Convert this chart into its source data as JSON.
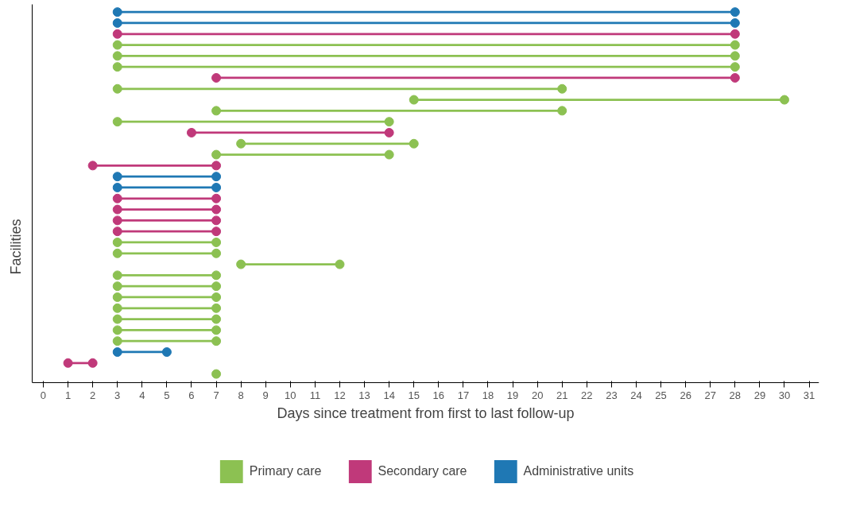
{
  "chart_data": {
    "type": "bar",
    "orientation": "horizontal",
    "xlabel": "Days since treatment from first to last follow-up",
    "ylabel": "Facilities",
    "categories": [
      null,
      null,
      null,
      null,
      null,
      null,
      null,
      null,
      null,
      null,
      null,
      null,
      null,
      null,
      null,
      null,
      null,
      null,
      null,
      null,
      null,
      null,
      null,
      null,
      null,
      null,
      null,
      null,
      null,
      null,
      null,
      null,
      null,
      null
    ],
    "series": [
      {
        "name": "Primary care",
        "color": "#8cc152",
        "base": [
          null,
          null,
          null,
          3,
          3,
          3,
          null,
          3,
          15,
          7,
          3,
          null,
          8,
          7,
          null,
          null,
          null,
          null,
          null,
          null,
          null,
          3,
          3,
          8,
          3,
          3,
          3,
          3,
          3,
          3,
          3,
          null,
          null,
          null
        ],
        "values": [
          null,
          null,
          null,
          25,
          25,
          25,
          null,
          18,
          15,
          14,
          11,
          null,
          7,
          7,
          null,
          null,
          null,
          null,
          null,
          null,
          null,
          4,
          4,
          4,
          4,
          4,
          4,
          4,
          4,
          4,
          4,
          null,
          null,
          null
        ]
      },
      {
        "name": "Secondary care",
        "color": "#c0397a",
        "base": [
          null,
          null,
          3,
          null,
          null,
          null,
          7,
          null,
          null,
          null,
          null,
          6,
          null,
          null,
          2,
          null,
          null,
          3,
          3,
          3,
          3,
          null,
          null,
          null,
          null,
          null,
          null,
          null,
          null,
          null,
          null,
          null,
          1,
          null
        ],
        "values": [
          null,
          null,
          25,
          null,
          null,
          null,
          21,
          null,
          null,
          null,
          null,
          8,
          null,
          null,
          5,
          null,
          null,
          4,
          4,
          4,
          4,
          null,
          null,
          null,
          null,
          null,
          null,
          null,
          null,
          null,
          null,
          null,
          1,
          null
        ]
      },
      {
        "name": "Administrative units",
        "color": "#1f78b4",
        "base": [
          3,
          3,
          null,
          null,
          null,
          null,
          null,
          null,
          null,
          null,
          null,
          null,
          null,
          null,
          null,
          3,
          3,
          null,
          null,
          null,
          null,
          null,
          null,
          null,
          null,
          null,
          null,
          null,
          null,
          null,
          null,
          3,
          null,
          null
        ],
        "values": [
          25,
          25,
          null,
          null,
          null,
          null,
          null,
          null,
          null,
          null,
          null,
          null,
          null,
          null,
          null,
          4,
          4,
          null,
          null,
          null,
          null,
          null,
          null,
          null,
          null,
          null,
          null,
          null,
          null,
          null,
          null,
          2,
          null,
          null
        ]
      },
      {
        "type": "scatter",
        "color": "#8cc152",
        "values": [
          null,
          null,
          null,
          3,
          3,
          3,
          null,
          3,
          15,
          7,
          3,
          null,
          8,
          7,
          null,
          null,
          null,
          null,
          null,
          null,
          null,
          3,
          3,
          8,
          3,
          3,
          3,
          3,
          3,
          3,
          3,
          null,
          null,
          7
        ]
      },
      {
        "type": "scatter",
        "color": "#8cc152",
        "values": [
          null,
          null,
          null,
          28,
          28,
          28,
          null,
          21,
          30,
          21,
          14,
          null,
          15,
          14,
          null,
          null,
          null,
          null,
          null,
          null,
          null,
          7,
          7,
          12,
          7,
          7,
          7,
          7,
          7,
          7,
          7,
          null,
          null,
          null
        ]
      },
      {
        "type": "scatter",
        "color": "#c0397a",
        "values": [
          null,
          null,
          3,
          null,
          null,
          null,
          7,
          null,
          null,
          null,
          null,
          6,
          null,
          null,
          2,
          null,
          null,
          3,
          3,
          3,
          3,
          null,
          null,
          null,
          null,
          null,
          null,
          null,
          null,
          null,
          null,
          null,
          1,
          null
        ]
      },
      {
        "type": "scatter",
        "color": "#c0397a",
        "values": [
          null,
          null,
          28,
          null,
          null,
          null,
          28,
          null,
          null,
          null,
          null,
          14,
          null,
          null,
          7,
          null,
          null,
          7,
          7,
          7,
          7,
          null,
          null,
          null,
          null,
          null,
          null,
          null,
          null,
          null,
          null,
          null,
          2,
          null
        ]
      },
      {
        "type": "scatter",
        "color": "#1f78b4",
        "values": [
          3,
          3,
          null,
          null,
          null,
          null,
          null,
          null,
          null,
          null,
          null,
          null,
          null,
          null,
          null,
          3,
          3,
          null,
          null,
          null,
          null,
          null,
          null,
          null,
          null,
          null,
          null,
          null,
          null,
          null,
          null,
          3,
          null,
          null
        ]
      },
      {
        "type": "scatter",
        "color": "#1f78b4",
        "values": [
          28,
          28,
          null,
          null,
          null,
          null,
          null,
          null,
          null,
          null,
          null,
          null,
          null,
          null,
          null,
          7,
          7,
          null,
          null,
          null,
          null,
          null,
          null,
          null,
          null,
          null,
          null,
          null,
          null,
          null,
          null,
          5,
          null,
          null
        ]
      }
    ],
    "xlim": [
      -0.45,
      31.4
    ],
    "xticks": [
      0,
      1,
      2,
      3,
      4,
      5,
      6,
      7,
      8,
      9,
      10,
      11,
      12,
      13,
      14,
      15,
      16,
      17,
      18,
      19,
      20,
      21,
      22,
      23,
      24,
      25,
      26,
      27,
      28,
      29,
      30,
      31
    ],
    "tick_labels": "x",
    "legend": "bottom",
    "marker": "circle"
  }
}
